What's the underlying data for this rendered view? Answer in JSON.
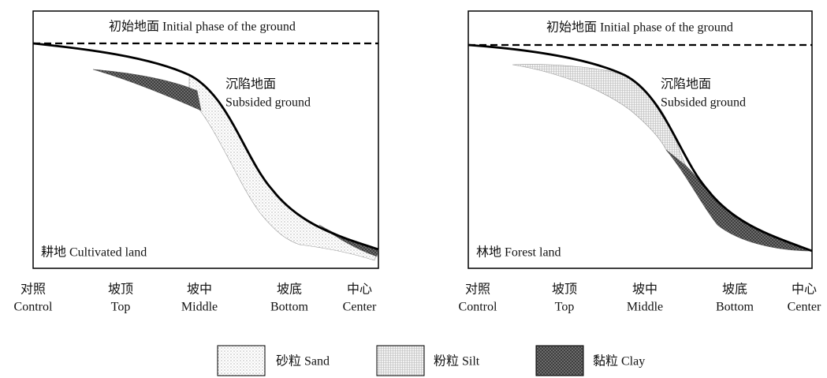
{
  "panels": [
    {
      "initial_label": "初始地面 Initial phase of the ground",
      "subsided_label": [
        "沉陷地面",
        "Subsided ground"
      ],
      "land_label": "耕地 Cultivated land"
    },
    {
      "initial_label": "初始地面 Initial phase of the ground",
      "subsided_label": [
        "沉陷地面",
        "Subsided ground"
      ],
      "land_label": "林地 Forest land"
    }
  ],
  "x_labels": [
    {
      "zh": "对照",
      "en": "Control"
    },
    {
      "zh": "坡顶",
      "en": "Top"
    },
    {
      "zh": "坡中",
      "en": "Middle"
    },
    {
      "zh": "坡底",
      "en": "Bottom"
    },
    {
      "zh": "中心",
      "en": "Center"
    }
  ],
  "legend": [
    "砂粒 Sand",
    "粉粒 Silt",
    "黏粒 Clay"
  ]
}
